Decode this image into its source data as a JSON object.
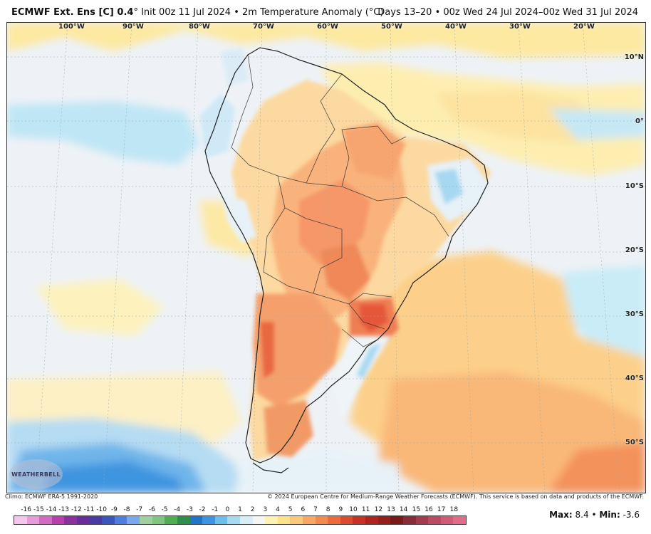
{
  "header": {
    "model": "ECMWF Ext. Ens [C] 0.4",
    "degree": "°",
    "init": "Init 00z 11 Jul 2024",
    "separator": "•",
    "field": "2m Temperature Anomaly (°C)",
    "valid": "Days 13–20 • 00z Wed 24 Jul 2024–00z Wed 31 Jul 2024"
  },
  "map": {
    "lon_labels": [
      "100°W",
      "90°W",
      "80°W",
      "70°W",
      "60°W",
      "50°W",
      "40°W",
      "30°W",
      "20°W"
    ],
    "lat_labels": [
      "10°N",
      "0°",
      "10°S",
      "20°S",
      "30°S",
      "40°S",
      "50°S"
    ],
    "logo_text": "WEATHERBELL"
  },
  "footer": {
    "climo": "Climo: ECMWF ERA-5 1991-2020",
    "copyright": "© 2024 European Centre for Medium-Range Weather Forecasts (ECMWF). This service is based on data and products of the ECMWF."
  },
  "colorbar": {
    "labels": [
      "-16",
      "-15",
      "-14",
      "-13",
      "-12",
      "-11",
      "-10",
      "-9",
      "-8",
      "-7",
      "-6",
      "-5",
      "-4",
      "-3",
      "-2",
      "-1",
      "0",
      "1",
      "2",
      "3",
      "4",
      "5",
      "6",
      "7",
      "8",
      "9",
      "10",
      "11",
      "12",
      "13",
      "14",
      "15",
      "16",
      "17",
      "18"
    ],
    "colors": [
      "#f7c6ee",
      "#e89ad9",
      "#d36ac4",
      "#b83fad",
      "#8e2fa0",
      "#6a2c9a",
      "#4a3aa5",
      "#3a55c0",
      "#4d7fe0",
      "#7aa8ef",
      "#9fd0a0",
      "#7fc77f",
      "#4fae4f",
      "#2e8f4a",
      "#1f75c9",
      "#3b95e3",
      "#6cbef0",
      "#a4dbf3",
      "#d8eef6",
      "#f5f5f5",
      "#fdf2b0",
      "#fde28a",
      "#fcc97a",
      "#f9a861",
      "#f48a4e",
      "#ec6a3c",
      "#df4a2e",
      "#c93124",
      "#b0241e",
      "#942019",
      "#7a1a18",
      "#8a2b3a",
      "#a33a4e",
      "#bb4a63",
      "#d25a77",
      "#e36b8a"
    ]
  },
  "stats": {
    "max_label": "Max:",
    "max_value": "8.4",
    "dot": "•",
    "min_label": "Min:",
    "min_value": "-3.6"
  }
}
